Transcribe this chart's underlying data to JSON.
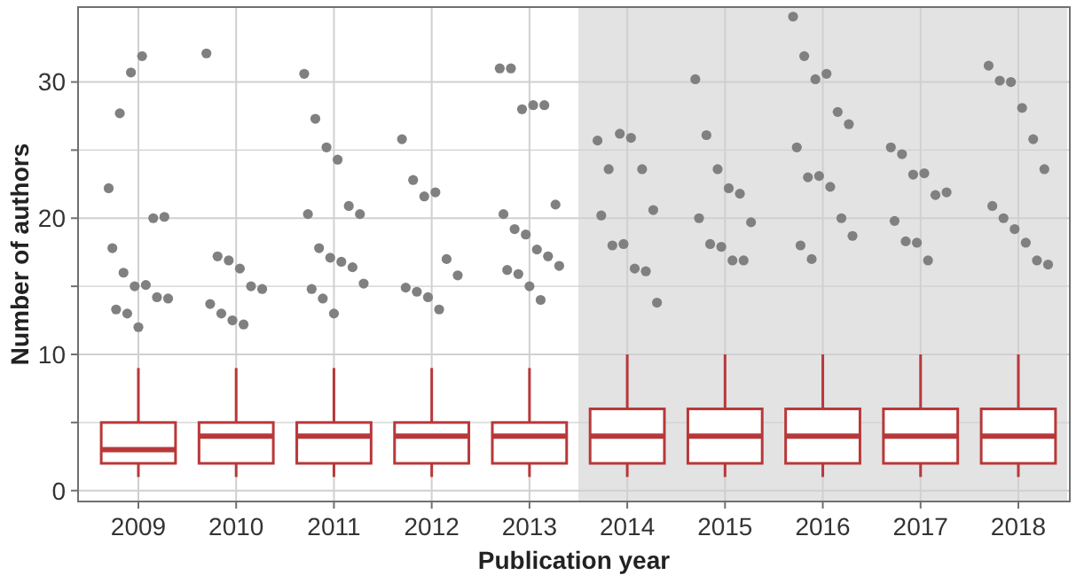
{
  "chart_data": {
    "type": "box",
    "xlabel": "Publication year",
    "ylabel": "Number of authors",
    "categories": [
      "2009",
      "2010",
      "2011",
      "2012",
      "2013",
      "2014",
      "2015",
      "2016",
      "2017",
      "2018"
    ],
    "boxes": [
      {
        "low": 1,
        "q1": 2,
        "median": 3,
        "q3": 5,
        "high": 9,
        "outliers": [
          22.2,
          27.7,
          30.7,
          31.9,
          20,
          20.1,
          17.8,
          16,
          15,
          15.1,
          14.2,
          14.1,
          13.3,
          13,
          12
        ]
      },
      {
        "low": 1,
        "q1": 2,
        "median": 4,
        "q3": 5,
        "high": 9,
        "outliers": [
          32.1,
          17.2,
          16.9,
          16.3,
          15,
          14.8,
          13.7,
          13,
          12.5,
          12.2
        ]
      },
      {
        "low": 1,
        "q1": 2,
        "median": 4,
        "q3": 5,
        "high": 9,
        "outliers": [
          30.6,
          27.3,
          25.2,
          24.3,
          20.9,
          20.3,
          20.3,
          17.8,
          17.1,
          16.8,
          16.4,
          15.2,
          14.8,
          14.1,
          13
        ]
      },
      {
        "low": 1,
        "q1": 2,
        "median": 4,
        "q3": 5,
        "high": 9,
        "outliers": [
          25.8,
          22.8,
          21.6,
          21.9,
          17,
          15.8,
          14.9,
          14.6,
          14.2,
          13.3
        ]
      },
      {
        "low": 1,
        "q1": 2,
        "median": 4,
        "q3": 5,
        "high": 9,
        "outliers": [
          31,
          31,
          28,
          28.3,
          28.3,
          21,
          20.3,
          19.2,
          18.8,
          17.7,
          17.2,
          16.5,
          16.2,
          15.9,
          15,
          14
        ]
      },
      {
        "low": 1,
        "q1": 2,
        "median": 4,
        "q3": 6,
        "high": 10,
        "outliers": [
          25.7,
          23.6,
          26.2,
          25.9,
          23.6,
          20.6,
          20.2,
          18,
          18.1,
          16.3,
          16.1,
          13.8
        ]
      },
      {
        "low": 1,
        "q1": 2,
        "median": 4,
        "q3": 6,
        "high": 10,
        "outliers": [
          30.2,
          26.1,
          23.6,
          22.2,
          21.8,
          19.7,
          20,
          18.1,
          17.9,
          16.9,
          16.9
        ]
      },
      {
        "low": 1,
        "q1": 2,
        "median": 4,
        "q3": 6,
        "high": 10,
        "outliers": [
          34.8,
          31.9,
          30.2,
          30.6,
          27.8,
          26.9,
          25.2,
          23,
          23.1,
          22.3,
          20,
          18.7,
          18,
          17
        ]
      },
      {
        "low": 1,
        "q1": 2,
        "median": 4,
        "q3": 6,
        "high": 10,
        "outliers": [
          25.2,
          24.7,
          23.2,
          23.3,
          21.7,
          21.9,
          19.8,
          18.3,
          18.2,
          16.9
        ]
      },
      {
        "low": 1,
        "q1": 2,
        "median": 4,
        "q3": 6,
        "high": 10,
        "outliers": [
          31.2,
          30.1,
          30,
          28.1,
          25.8,
          23.6,
          20.9,
          20,
          19.2,
          18.2,
          16.9,
          16.6
        ]
      }
    ],
    "color": "#b8383a",
    "ylim": [
      -0.8,
      35.5
    ],
    "yticks": [
      0,
      {
        "value": 5,
        "label": null
      },
      10,
      {
        "value": 15,
        "label": null
      },
      20,
      {
        "value": 25,
        "label": null
      },
      30
    ],
    "grid": true,
    "bands": [
      {
        "axis": "x",
        "from": "2014",
        "to": "2018",
        "color": "#e3e3e3"
      }
    ]
  }
}
